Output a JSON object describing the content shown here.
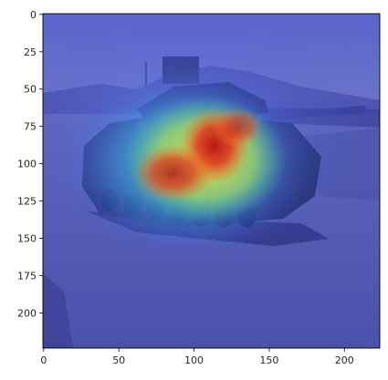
{
  "figure": {
    "kind": "image plotted on matplotlib axes with an attention heatmap overlay",
    "x_axis": {
      "ticks": [
        0,
        50,
        100,
        150,
        200
      ],
      "range": [
        0,
        224
      ]
    },
    "y_axis": {
      "ticks": [
        0,
        25,
        50,
        75,
        100,
        125,
        150,
        175,
        200
      ],
      "range": [
        0,
        224
      ],
      "inverted": true
    },
    "colormap": "jet",
    "colors": {
      "low": "#3c46c8",
      "mid": "#22c8a0",
      "high_yellow": "#f0e040",
      "high_red": "#c81e1e",
      "sky": "#5a64c8",
      "ground": "#5560b8",
      "tank_dark": "#1e2a6a",
      "tick": "#262626"
    }
  }
}
